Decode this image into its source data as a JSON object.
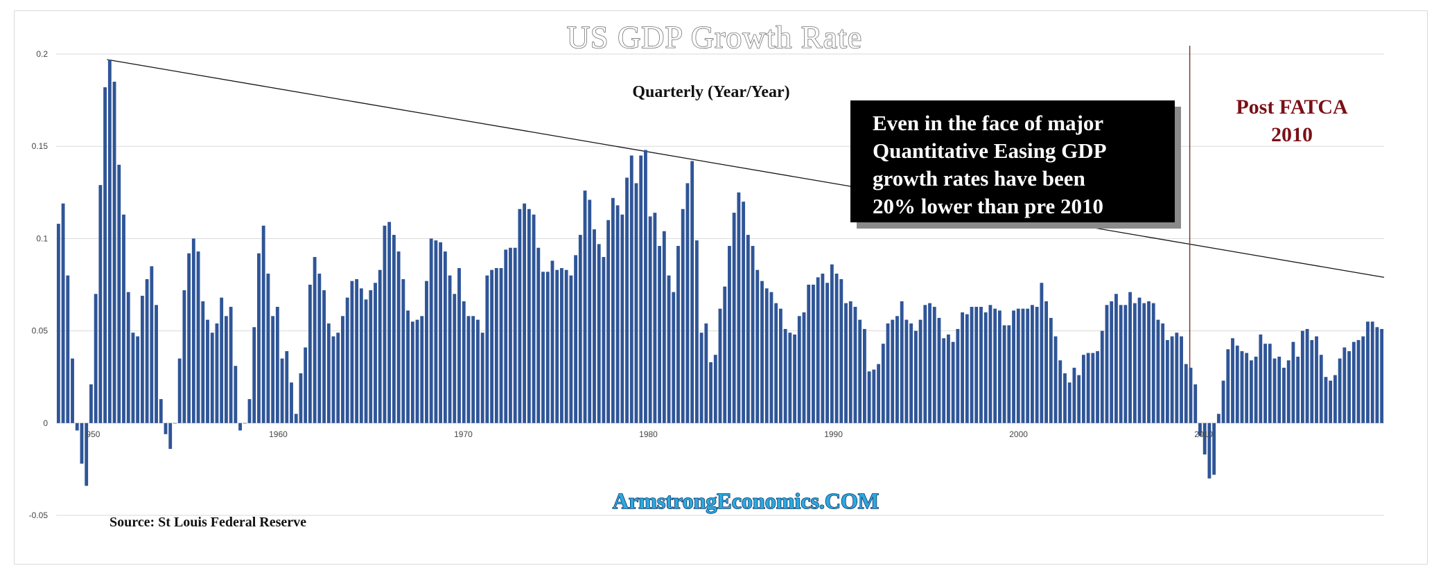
{
  "chart_data": {
    "type": "bar",
    "title": "US GDP Growth Rate",
    "subtitle": "Quarterly (Year/Year)",
    "source": "Source: St Louis Federal Reserve",
    "watermark": "ArmstrongEconomics.COM",
    "ylim": [
      -0.05,
      0.2
    ],
    "ytick_labels": [
      "0.2",
      "0.15",
      "0.1",
      "0.05",
      "0",
      "-0.05"
    ],
    "xlim": [
      1948,
      2019.75
    ],
    "xtick_labels": [
      "950",
      "1960",
      "1970",
      "1980",
      "1990",
      "2000",
      "2010"
    ],
    "grid": true,
    "bar_color": "#2f5597",
    "annotations": {
      "callout_lines": [
        "Even in the face of  major",
        "Quantitative Easing GDP",
        "growth rates have been",
        "20% lower than pre 2010"
      ],
      "fatca_lines": [
        "Post FATCA",
        "2010"
      ],
      "trendline": {
        "start": [
          1950.75,
          0.197
        ],
        "end": [
          2019.75,
          0.079
        ]
      },
      "vertical_marker_x": 2009.25
    },
    "series": [
      {
        "values": [
          0.108,
          0.119,
          0.08,
          0.035,
          -0.004,
          -0.022,
          -0.034,
          0.021,
          0.07,
          0.129,
          0.182,
          0.197,
          0.185,
          0.14,
          0.113,
          0.071,
          0.049,
          0.047,
          0.069,
          0.078,
          0.085,
          0.064,
          0.013,
          -0.006,
          -0.014,
          0.0,
          0.035,
          0.072,
          0.092,
          0.1,
          0.093,
          0.066,
          0.056,
          0.049,
          0.054,
          0.068,
          0.058,
          0.063,
          0.031,
          -0.004,
          0.0,
          0.013,
          0.052,
          0.092,
          0.107,
          0.081,
          0.058,
          0.063,
          0.035,
          0.039,
          0.022,
          0.005,
          0.027,
          0.041,
          0.075,
          0.09,
          0.081,
          0.072,
          0.054,
          0.047,
          0.049,
          0.058,
          0.068,
          0.077,
          0.078,
          0.073,
          0.067,
          0.072,
          0.076,
          0.083,
          0.107,
          0.109,
          0.102,
          0.093,
          0.078,
          0.061,
          0.055,
          0.056,
          0.058,
          0.077,
          0.1,
          0.099,
          0.098,
          0.093,
          0.08,
          0.07,
          0.084,
          0.066,
          0.058,
          0.058,
          0.056,
          0.049,
          0.08,
          0.083,
          0.084,
          0.084,
          0.094,
          0.095,
          0.095,
          0.116,
          0.119,
          0.116,
          0.113,
          0.095,
          0.082,
          0.082,
          0.088,
          0.083,
          0.084,
          0.083,
          0.08,
          0.091,
          0.102,
          0.126,
          0.121,
          0.105,
          0.097,
          0.09,
          0.11,
          0.122,
          0.118,
          0.113,
          0.133,
          0.145,
          0.13,
          0.145,
          0.148,
          0.112,
          0.114,
          0.096,
          0.104,
          0.08,
          0.071,
          0.096,
          0.116,
          0.13,
          0.142,
          0.099,
          0.049,
          0.054,
          0.033,
          0.037,
          0.062,
          0.074,
          0.096,
          0.114,
          0.125,
          0.12,
          0.102,
          0.096,
          0.083,
          0.077,
          0.073,
          0.071,
          0.065,
          0.062,
          0.051,
          0.049,
          0.048,
          0.058,
          0.06,
          0.075,
          0.075,
          0.079,
          0.081,
          0.076,
          0.086,
          0.081,
          0.078,
          0.065,
          0.066,
          0.063,
          0.056,
          0.051,
          0.028,
          0.029,
          0.032,
          0.043,
          0.054,
          0.056,
          0.058,
          0.066,
          0.056,
          0.054,
          0.05,
          0.056,
          0.064,
          0.065,
          0.063,
          0.057,
          0.046,
          0.048,
          0.044,
          0.051,
          0.06,
          0.059,
          0.063,
          0.063,
          0.063,
          0.06,
          0.064,
          0.062,
          0.061,
          0.053,
          0.053,
          0.061,
          0.062,
          0.062,
          0.062,
          0.064,
          0.063,
          0.076,
          0.066,
          0.057,
          0.047,
          0.034,
          0.027,
          0.022,
          0.03,
          0.026,
          0.037,
          0.038,
          0.038,
          0.039,
          0.05,
          0.064,
          0.066,
          0.07,
          0.064,
          0.064,
          0.071,
          0.065,
          0.068,
          0.065,
          0.066,
          0.065,
          0.056,
          0.054,
          0.045,
          0.047,
          0.049,
          0.047,
          0.032,
          0.03,
          0.021,
          -0.007,
          -0.017,
          -0.03,
          -0.028,
          0.005,
          0.023,
          0.04,
          0.046,
          0.042,
          0.039,
          0.038,
          0.034,
          0.036,
          0.048,
          0.043,
          0.043,
          0.035,
          0.036,
          0.03,
          0.034,
          0.044,
          0.036,
          0.05,
          0.051,
          0.045,
          0.047,
          0.037,
          0.025,
          0.023,
          0.026,
          0.035,
          0.041,
          0.039,
          0.044,
          0.045,
          0.047,
          0.055,
          0.055,
          0.052,
          0.051
        ]
      }
    ]
  }
}
